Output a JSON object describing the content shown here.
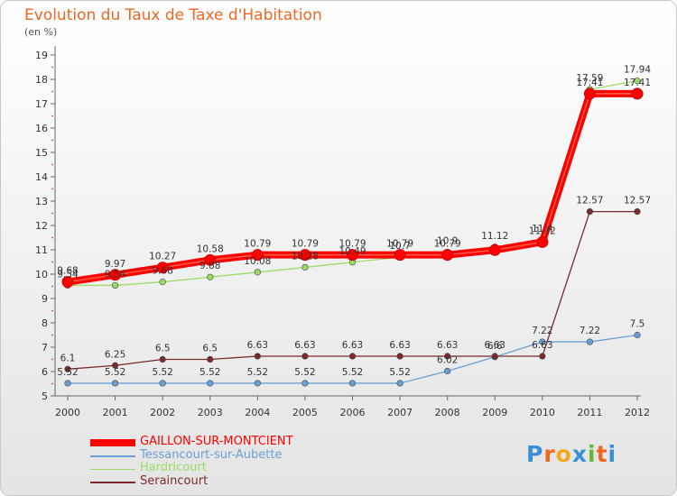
{
  "chart_data": {
    "type": "line",
    "title": "Evolution du Taux de Taxe d'Habitation",
    "subtitle": "(en %)",
    "x": [
      "2000",
      "2001",
      "2002",
      "2003",
      "2004",
      "2005",
      "2006",
      "2007",
      "2008",
      "2009",
      "2010",
      "2011",
      "2012"
    ],
    "ylim": [
      5,
      19
    ],
    "yticks": [
      5,
      6,
      7,
      8,
      9,
      10,
      11,
      12,
      13,
      14,
      15,
      16,
      17,
      18,
      19
    ],
    "grid": false,
    "legend_position": "bottom-left",
    "series": [
      {
        "name": "GAILLON-SUR-MONTCIENT",
        "color": "#ff0000",
        "values": [
          9.68,
          9.97,
          10.27,
          10.58,
          10.79,
          10.79,
          10.79,
          10.79,
          10.79,
          10.99,
          11.32,
          17.41,
          17.41
        ],
        "labels": [
          "9.68",
          "9.97",
          "10.27",
          "10.58",
          "10.79",
          "10.79",
          "10.79",
          "10.79",
          "10.79",
          "",
          "11.32",
          "17.41",
          "17.41"
        ]
      },
      {
        "name": "Tessancourt-sur-Aubette",
        "color": "#6a9fd4",
        "values": [
          5.52,
          5.52,
          5.52,
          5.52,
          5.52,
          5.52,
          5.52,
          5.52,
          6.02,
          6.6,
          7.22,
          7.22,
          7.5
        ],
        "labels": [
          "5.52",
          "5.52",
          "5.52",
          "5.52",
          "5.52",
          "5.52",
          "5.52",
          "5.52",
          "6.02",
          "6.6",
          "7.22",
          "7.22",
          "7.5"
        ]
      },
      {
        "name": "Hardricourt",
        "color": "#99dd66",
        "values": [
          9.54,
          9.54,
          9.68,
          9.88,
          10.08,
          10.28,
          10.49,
          10.7,
          10.9,
          11.12,
          11.4,
          17.59,
          17.94
        ],
        "labels": [
          "9.54",
          "9.54",
          "9.68",
          "9.88",
          "10.08",
          "10.28",
          "10.49",
          "10.7",
          "10.9",
          "11.12",
          "11.4",
          "17.59",
          "17.94"
        ]
      },
      {
        "name": "Seraincourt",
        "color": "#7a2a2a",
        "values": [
          6.1,
          6.25,
          6.5,
          6.5,
          6.63,
          6.63,
          6.63,
          6.63,
          6.63,
          6.63,
          6.63,
          12.57,
          12.57
        ],
        "labels": [
          "6.1",
          "6.25",
          "6.5",
          "6.5",
          "6.63",
          "6.63",
          "6.63",
          "6.63",
          "6.63",
          "6.63",
          "6.63",
          "12.57",
          "12.57"
        ]
      }
    ]
  },
  "logo": {
    "text": "Proxiti",
    "letters": [
      "P",
      "r",
      "o",
      "x",
      "i",
      "t",
      "i"
    ],
    "colors": [
      "#3a8fd8",
      "#ee6622",
      "#f5a623",
      "#3a8fd8",
      "#66bb33",
      "#ee6622",
      "#3a8fd8"
    ]
  }
}
